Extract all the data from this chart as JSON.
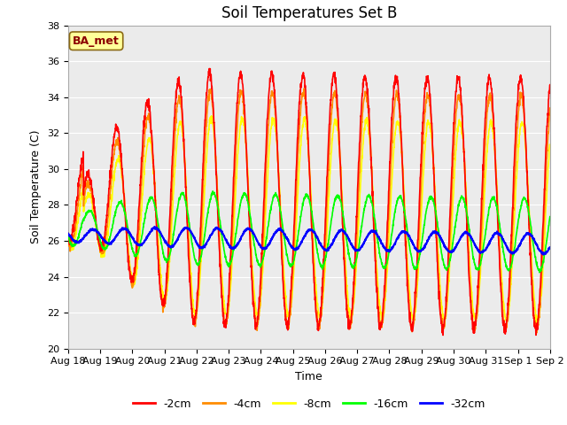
{
  "title": "Soil Temperatures Set B",
  "xlabel": "Time",
  "ylabel": "Soil Temperature (C)",
  "ylim": [
    20,
    38
  ],
  "yticks": [
    20,
    22,
    24,
    26,
    28,
    30,
    32,
    34,
    36,
    38
  ],
  "x_labels": [
    "Aug 18",
    "Aug 19",
    "Aug 20",
    "Aug 21",
    "Aug 22",
    "Aug 23",
    "Aug 24",
    "Aug 25",
    "Aug 26",
    "Aug 27",
    "Aug 28",
    "Aug 29",
    "Aug 30",
    "Aug 31",
    "Sep 1",
    "Sep 2"
  ],
  "series": {
    "-2cm": {
      "color": "#FF0000",
      "lw": 1.2
    },
    "-4cm": {
      "color": "#FF8C00",
      "lw": 1.2
    },
    "-8cm": {
      "color": "#FFFF00",
      "lw": 1.2
    },
    "-16cm": {
      "color": "#00FF00",
      "lw": 1.2
    },
    "-32cm": {
      "color": "#0000FF",
      "lw": 1.5
    }
  },
  "legend_labels": [
    "-2cm",
    "-4cm",
    "-8cm",
    "-16cm",
    "-32cm"
  ],
  "legend_colors": [
    "#FF0000",
    "#FF8C00",
    "#FFFF00",
    "#00FF00",
    "#0000FF"
  ],
  "annotation_text": "BA_met",
  "annotation_color": "#8B0000",
  "annotation_bg": "#FFFF99",
  "plot_bg": "#EBEBEB",
  "title_fontsize": 12,
  "axis_fontsize": 8,
  "label_fontsize": 9
}
